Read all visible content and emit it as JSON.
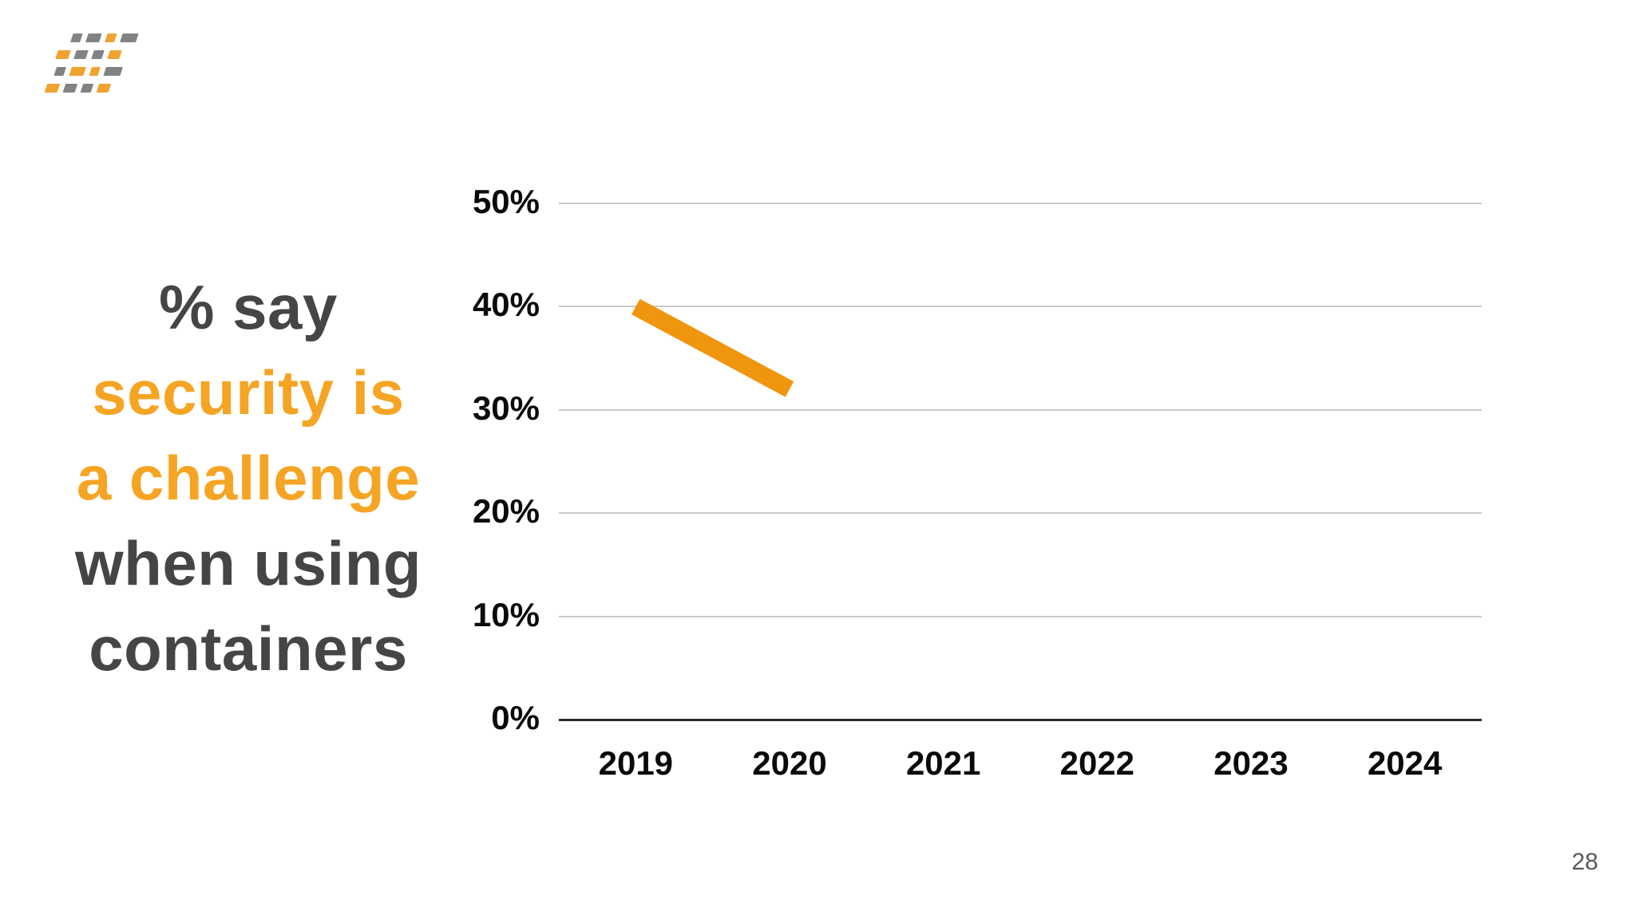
{
  "title": {
    "lines": [
      {
        "text": "% say",
        "accent": false
      },
      {
        "text": "security is",
        "accent": true
      },
      {
        "text": "a challenge",
        "accent": true
      },
      {
        "text": "when using",
        "accent": false
      },
      {
        "text": "containers",
        "accent": false
      }
    ]
  },
  "page": {
    "number": "28"
  },
  "logo": {
    "description": "tilted-dashes-logo",
    "rows": [
      {
        "offset": 12,
        "dashes": [
          {
            "c": "g",
            "w": 12
          },
          {
            "c": "g",
            "w": 17
          },
          {
            "c": "o",
            "w": 12
          },
          {
            "c": "g",
            "w": 20
          }
        ]
      },
      {
        "offset": 0,
        "dashes": [
          {
            "c": "o",
            "w": 16
          },
          {
            "c": "g",
            "w": 15
          },
          {
            "c": "g",
            "w": 13
          },
          {
            "c": "o",
            "w": 15
          }
        ]
      },
      {
        "offset": 5,
        "dashes": [
          {
            "c": "g",
            "w": 12
          },
          {
            "c": "o",
            "w": 18
          },
          {
            "c": "o",
            "w": 11
          },
          {
            "c": "g",
            "w": 21
          }
        ]
      },
      {
        "offset": 0,
        "dashes": [
          {
            "c": "o",
            "w": 16
          },
          {
            "c": "g",
            "w": 15
          },
          {
            "c": "g",
            "w": 13
          },
          {
            "c": "o",
            "w": 15
          }
        ]
      }
    ]
  },
  "colors": {
    "accent_orange": "#F5A423",
    "line_orange": "#F0950E",
    "logo_orange": "#F0A330",
    "logo_gray": "#808285",
    "dark_text": "#454547",
    "gridline": "#C9C9C9",
    "axis": "#2B2B2B",
    "tick_label": "#0A0A0A",
    "page_number": "#595959"
  },
  "chart_data": {
    "type": "line",
    "title": "% say security is a challenge when using containers",
    "categories": [
      "2019",
      "2020",
      "2021",
      "2022",
      "2023",
      "2024"
    ],
    "series": [
      {
        "name": "% say security is a challenge when using containers",
        "values": [
          40,
          32,
          null,
          null,
          null,
          null
        ],
        "color": "#F0950E"
      }
    ],
    "xlabel": "",
    "ylabel": "",
    "ylim": [
      0,
      50
    ],
    "y_ticks": [
      0,
      10,
      20,
      30,
      40,
      50
    ],
    "y_tick_labels": [
      "0%",
      "10%",
      "20%",
      "30%",
      "40%",
      "50%"
    ],
    "grid": true,
    "legend": "none",
    "line_width": 22
  }
}
